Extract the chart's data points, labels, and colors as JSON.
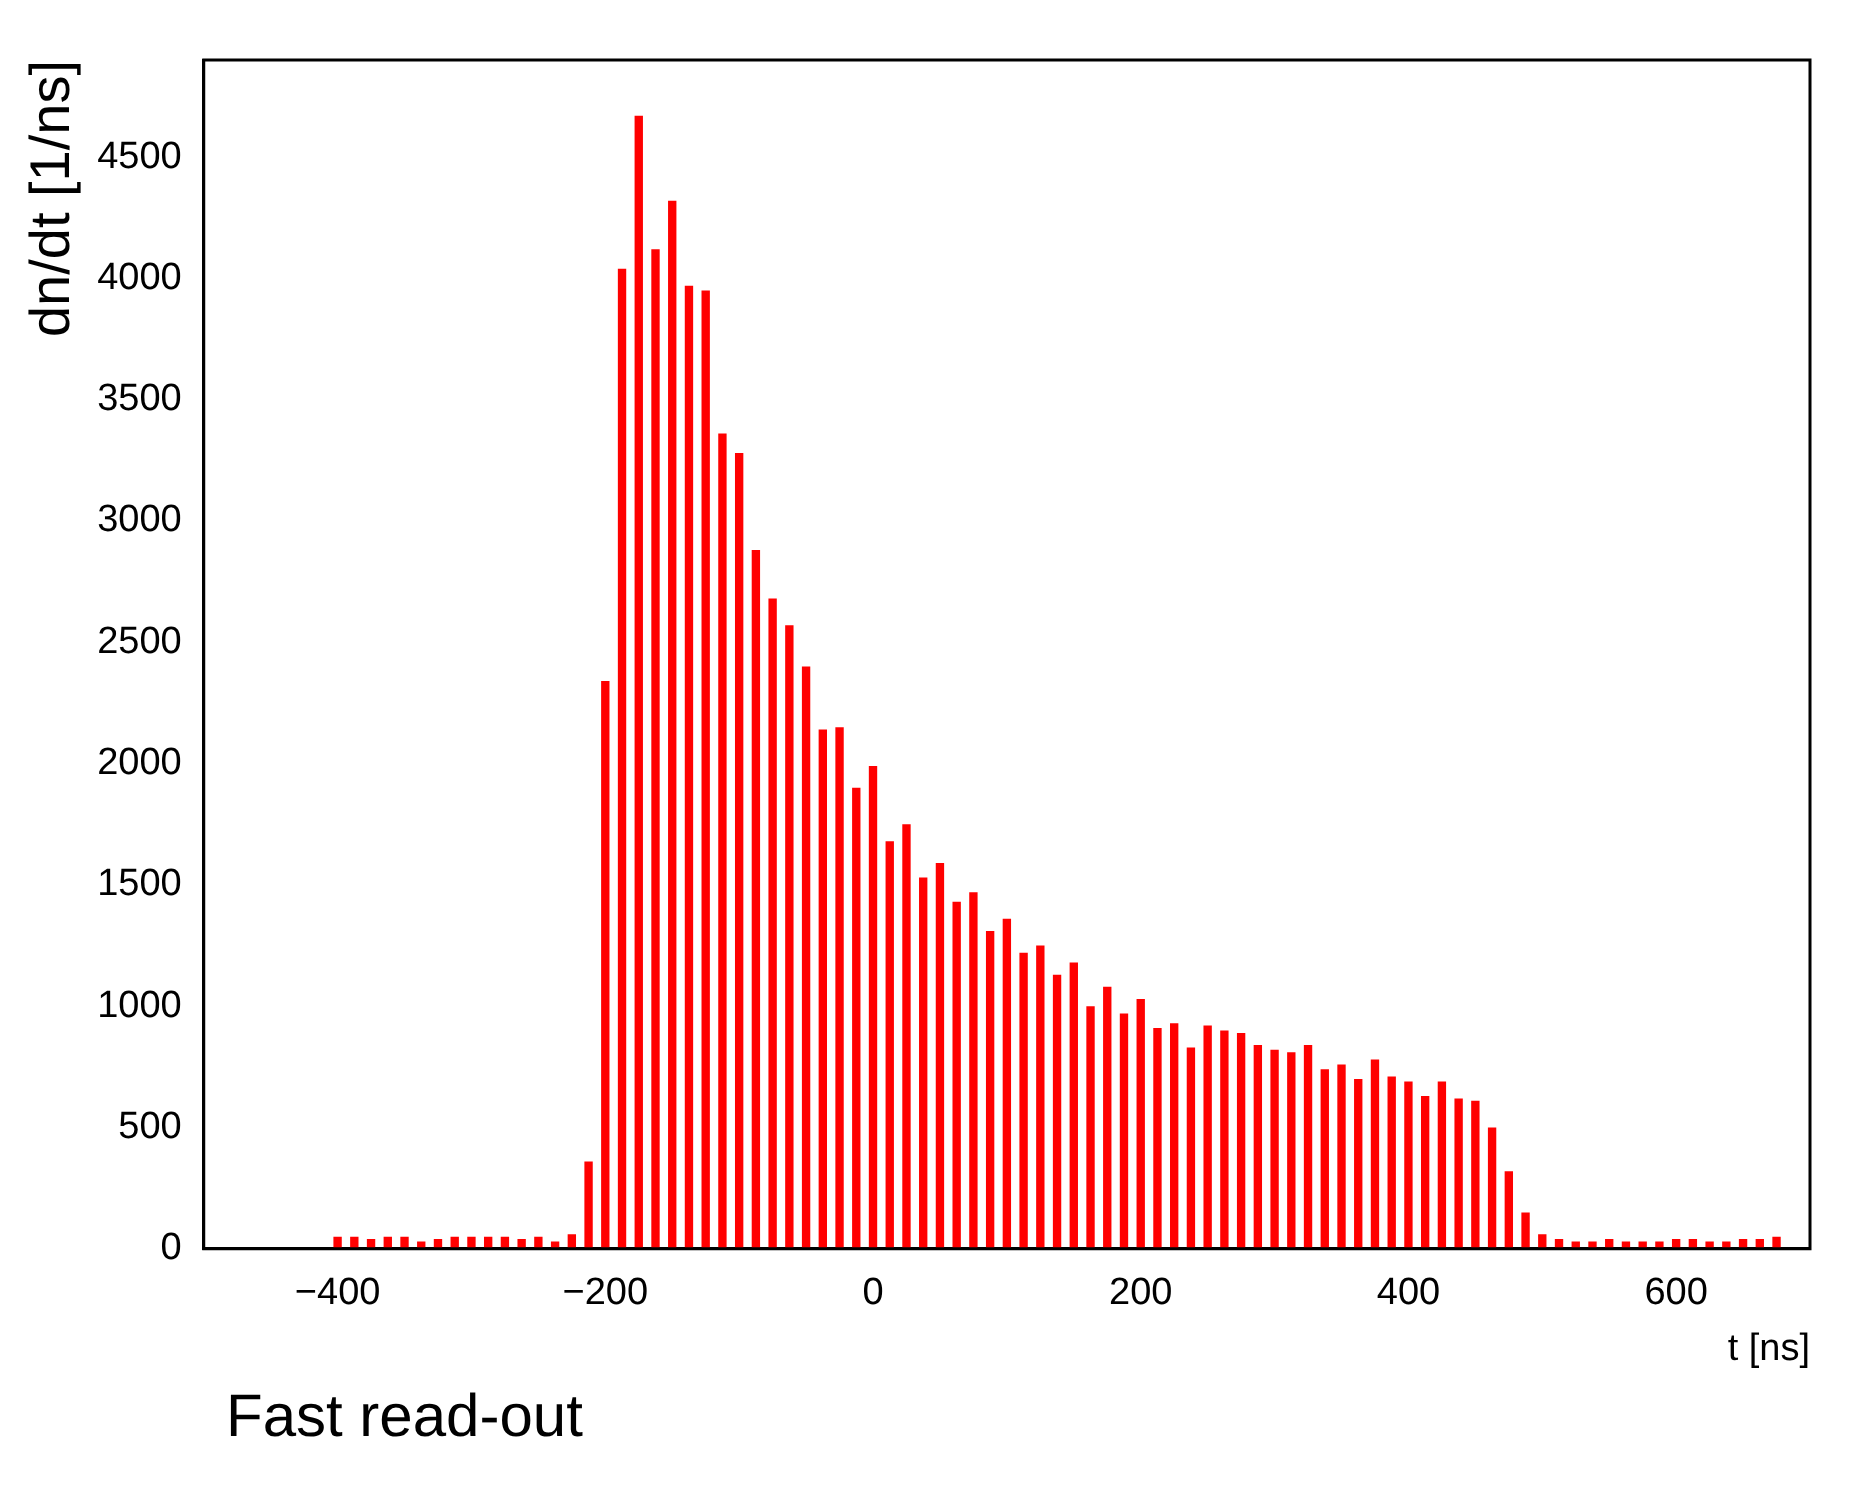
{
  "chart_data": {
    "type": "histogram",
    "xlabel": "t [ns]",
    "ylabel": "dn/dt [1/ns]",
    "annotations": [
      "Fast read-out"
    ],
    "bins": [
      -406.25,
      -393.75,
      -381.25,
      -368.75,
      -356.25,
      -343.75,
      -331.25,
      -318.75,
      -306.25,
      -293.75,
      -281.25,
      -268.75,
      -256.25,
      -243.75,
      -231.25,
      -218.75,
      -206.25,
      -193.75,
      -181.25,
      -168.75,
      -156.25,
      -143.75,
      -131.25,
      -118.75,
      -106.25,
      -93.75,
      -81.25,
      -68.75,
      -56.25,
      -43.75,
      -31.25,
      -18.75,
      -6.25,
      6.25,
      18.75,
      31.25,
      43.75,
      56.25,
      68.75,
      81.25,
      93.75,
      106.25,
      118.75,
      131.25,
      143.75,
      156.25,
      168.75,
      181.25,
      193.75,
      206.25,
      218.75,
      231.25,
      243.75,
      256.25,
      268.75,
      281.25,
      293.75,
      306.25,
      318.75,
      331.25,
      343.75,
      356.25,
      368.75,
      381.25,
      393.75,
      406.25,
      418.75,
      431.25,
      443.75,
      456.25,
      468.75,
      481.25,
      493.75,
      506.25,
      518.75,
      531.25,
      543.75,
      556.25,
      568.75,
      581.25,
      593.75,
      606.25,
      618.75,
      631.25,
      643.75,
      656.25,
      668.75,
      681.25
    ],
    "values": [
      50,
      50,
      40,
      50,
      50,
      30,
      40,
      50,
      50,
      50,
      50,
      40,
      50,
      30,
      60,
      360,
      2340,
      4040,
      4670,
      4120,
      4320,
      3970,
      3950,
      3360,
      3280,
      2880,
      2680,
      2570,
      2400,
      2140,
      2150,
      1900,
      1990,
      1680,
      1750,
      1530,
      1590,
      1430,
      1470,
      1310,
      1360,
      1220,
      1250,
      1130,
      1180,
      1000,
      1080,
      970,
      1030,
      910,
      930,
      830,
      920,
      900,
      890,
      840,
      820,
      810,
      840,
      740,
      760,
      700,
      780,
      710,
      690,
      630,
      690,
      620,
      610,
      500,
      320,
      150,
      60,
      40,
      30,
      30,
      40,
      30,
      30,
      30,
      40,
      40,
      30,
      30,
      40,
      40,
      50
    ],
    "color": "#ff0000",
    "xlim": [
      -500,
      700
    ],
    "ylim": [
      0,
      4900
    ],
    "xticks": [
      {
        "value": -400,
        "label": "−400"
      },
      {
        "value": -200,
        "label": "−200"
      },
      0,
      200,
      400,
      600
    ],
    "yticks": [
      0,
      500,
      1000,
      1500,
      2000,
      2500,
      3000,
      3500,
      4000,
      4500
    ],
    "grid": false,
    "legend": false
  }
}
